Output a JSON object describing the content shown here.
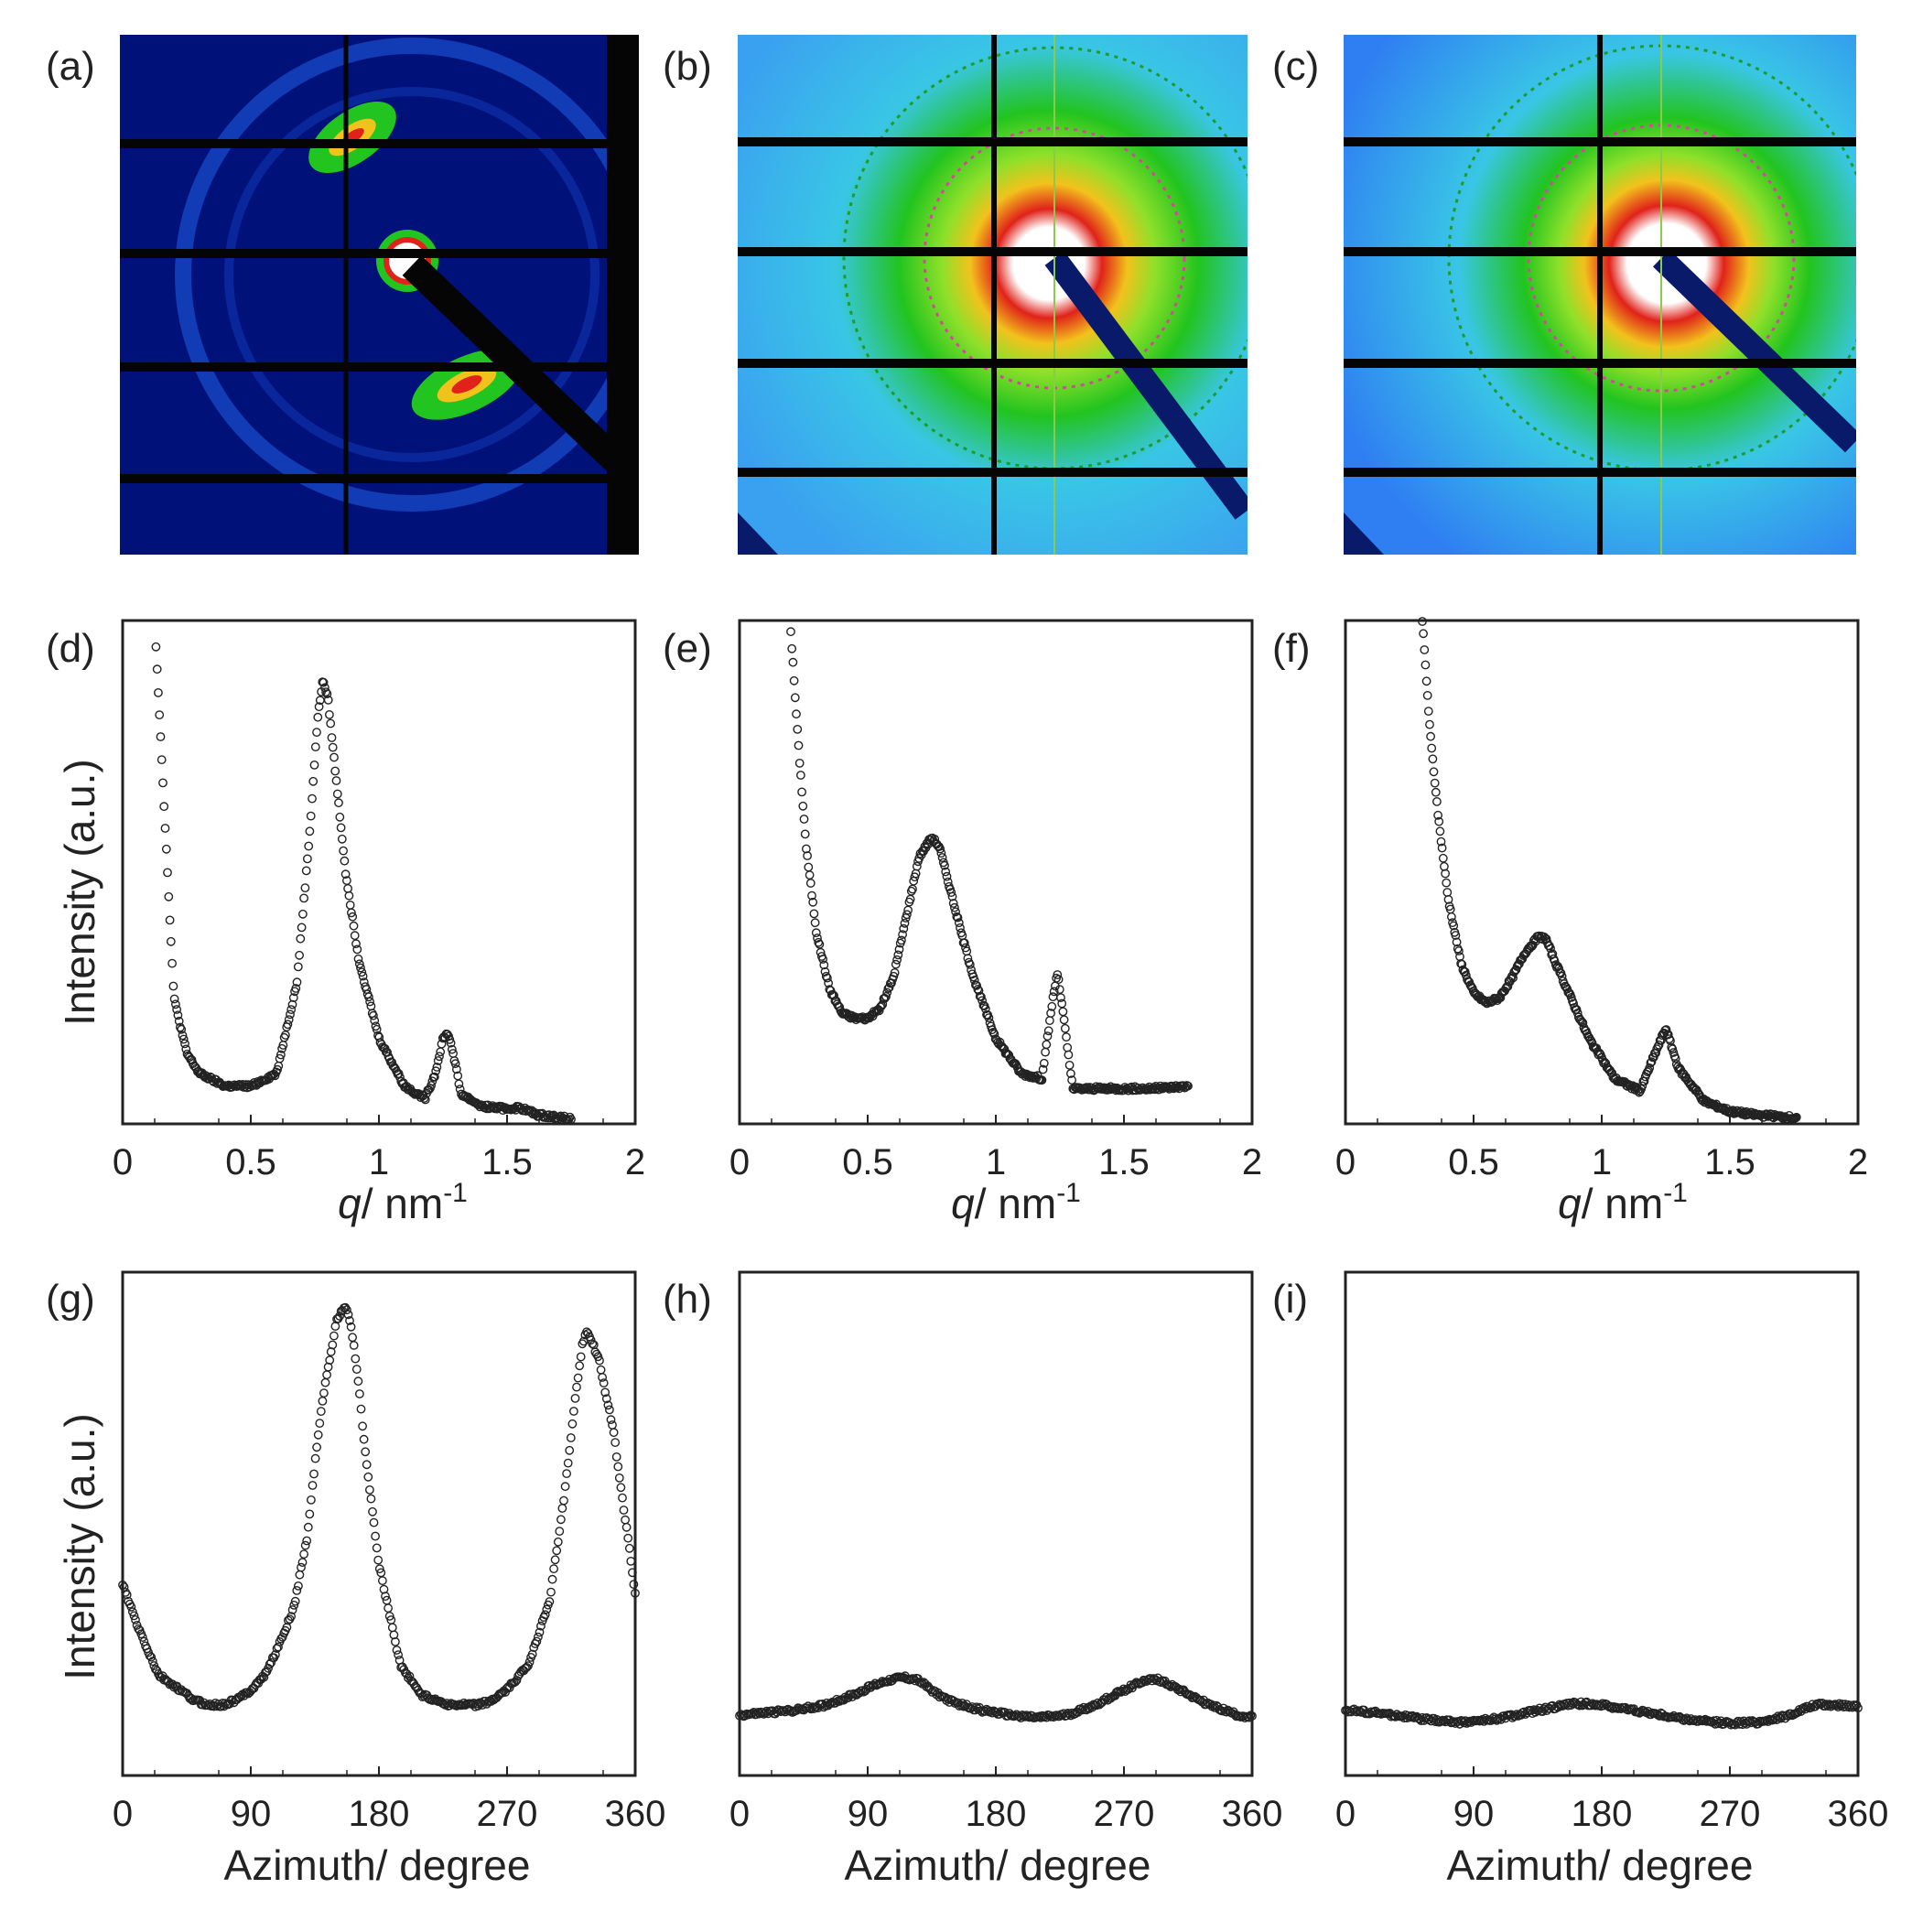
{
  "figure": {
    "labels": [
      "(a)",
      "(b)",
      "(c)",
      "(d)",
      "(e)",
      "(f)",
      "(g)",
      "(h)",
      "(i)"
    ],
    "ylabel": "Intensity (a.u.)",
    "q_xlabel_italic": "q",
    "q_xlabel_rest": "/ nm",
    "q_xlabel_sup": "-1",
    "az_xlabel": "Azimuth/ degree"
  },
  "colors": {
    "detector_bg_a": "#00127a",
    "detector_bg_bc": "#39c6e6",
    "ring_green": "#22c41f",
    "ring_red": "#e0221a",
    "beamstop": "#0a1a6b",
    "marker": "#222222"
  },
  "chart_data": [
    {
      "id": "d",
      "type": "scatter",
      "title": "",
      "xlabel": "q/ nm-1",
      "ylabel": "Intensity (a.u.)",
      "xlim": [
        0,
        2
      ],
      "ylim": [
        0,
        100
      ],
      "xticks": [
        "0",
        "0.5",
        "1",
        "1.5",
        "2"
      ],
      "x": [
        0.13,
        0.16,
        0.2,
        0.25,
        0.3,
        0.4,
        0.5,
        0.6,
        0.68,
        0.73,
        0.76,
        0.78,
        0.8,
        0.83,
        0.87,
        0.92,
        1.0,
        1.1,
        1.18,
        1.22,
        1.25,
        1.27,
        1.29,
        1.32,
        1.4,
        1.5,
        1.55,
        1.62,
        1.75
      ],
      "y": [
        95,
        65,
        25,
        14,
        10,
        7.5,
        7.5,
        10,
        28,
        58,
        80,
        88,
        85,
        70,
        50,
        33,
        17,
        7.5,
        5,
        10,
        17,
        18,
        14,
        6,
        3.5,
        3,
        3.2,
        1.8,
        1
      ]
    },
    {
      "id": "e",
      "type": "scatter",
      "title": "",
      "xlabel": "q/ nm-1",
      "ylabel": "Intensity (a.u.)",
      "xlim": [
        0,
        2
      ],
      "ylim": [
        0,
        100
      ],
      "xticks": [
        "0",
        "0.5",
        "1",
        "1.5",
        "2"
      ],
      "x": [
        0.2,
        0.23,
        0.26,
        0.3,
        0.35,
        0.4,
        0.45,
        0.5,
        0.55,
        0.6,
        0.65,
        0.7,
        0.75,
        0.78,
        0.82,
        0.87,
        0.92,
        1.0,
        1.1,
        1.18,
        1.22,
        1.24,
        1.26,
        1.3,
        1.4,
        1.5,
        1.6,
        1.75
      ],
      "y": [
        98,
        75,
        55,
        38,
        27,
        22,
        21,
        21,
        23,
        29,
        41,
        53,
        57,
        55,
        47,
        37,
        28,
        17,
        10,
        9,
        24,
        30,
        23,
        7,
        7,
        7,
        7,
        7.5
      ]
    },
    {
      "id": "f",
      "type": "scatter",
      "title": "",
      "xlabel": "q/ nm-1",
      "ylabel": "Intensity (a.u.)",
      "xlim": [
        0,
        2
      ],
      "ylim": [
        0,
        100
      ],
      "xticks": [
        "0",
        "0.5",
        "1",
        "1.5",
        "2"
      ],
      "x": [
        0.3,
        0.33,
        0.36,
        0.4,
        0.45,
        0.5,
        0.55,
        0.6,
        0.65,
        0.7,
        0.75,
        0.78,
        0.82,
        0.88,
        0.95,
        1.05,
        1.15,
        1.2,
        1.25,
        1.3,
        1.4,
        1.5,
        1.6,
        1.76
      ],
      "y": [
        100,
        78,
        62,
        45,
        32,
        26,
        24,
        25,
        29,
        34,
        37,
        37,
        32,
        25,
        17,
        9,
        6.5,
        13,
        19,
        11,
        4.5,
        2.5,
        1.8,
        1.2
      ]
    },
    {
      "id": "g",
      "type": "scatter",
      "title": "",
      "xlabel": "Azimuth/ degree",
      "ylabel": "Intensity (a.u.)",
      "xlim": [
        0,
        360
      ],
      "ylim": [
        0,
        100
      ],
      "xticks": [
        "0",
        "90",
        "180",
        "270",
        "360"
      ],
      "x": [
        0,
        10,
        25,
        40,
        50,
        60,
        70,
        80,
        90,
        100,
        110,
        120,
        130,
        135,
        140,
        145,
        150,
        153,
        157,
        160,
        165,
        170,
        180,
        195,
        210,
        220,
        230,
        240,
        250,
        260,
        270,
        285,
        300,
        310,
        318,
        323,
        326,
        330,
        335,
        340,
        345,
        350,
        355,
        360
      ],
      "y": [
        38,
        30,
        20,
        17,
        15,
        14,
        14,
        15,
        17,
        20,
        26,
        33,
        48,
        62,
        74,
        82,
        90,
        92,
        93,
        90,
        80,
        65,
        42,
        22,
        16,
        15,
        14,
        14,
        14,
        15,
        17,
        22,
        35,
        55,
        75,
        86,
        88,
        86,
        82,
        75,
        68,
        57,
        47,
        36
      ]
    },
    {
      "id": "h",
      "type": "scatter",
      "title": "",
      "xlabel": "Azimuth/ degree",
      "ylabel": "Intensity (a.u.)",
      "xlim": [
        0,
        360
      ],
      "ylim": [
        0,
        100
      ],
      "xticks": [
        "0",
        "90",
        "180",
        "270",
        "360"
      ],
      "x": [
        0,
        20,
        40,
        60,
        80,
        95,
        105,
        115,
        125,
        130,
        140,
        150,
        170,
        190,
        210,
        230,
        250,
        270,
        285,
        295,
        310,
        330,
        350,
        360
      ],
      "y": [
        12,
        12.5,
        13,
        14,
        16,
        18,
        19,
        19.5,
        19,
        18,
        16,
        14.5,
        13,
        12,
        11.5,
        12,
        14,
        17,
        19,
        19,
        17,
        14,
        12,
        11.5
      ]
    },
    {
      "id": "i",
      "type": "scatter",
      "title": "",
      "xlabel": "Azimuth/ degree",
      "ylabel": "Intensity (a.u.)",
      "xlim": [
        0,
        360
      ],
      "ylim": [
        0,
        100
      ],
      "xticks": [
        "0",
        "90",
        "180",
        "270",
        "360"
      ],
      "x": [
        0,
        20,
        40,
        60,
        80,
        100,
        120,
        130,
        140,
        150,
        160,
        170,
        180,
        195,
        210,
        230,
        250,
        270,
        290,
        310,
        320,
        330,
        345,
        360
      ],
      "y": [
        13,
        12.5,
        11.8,
        11,
        10.6,
        11,
        12,
        12.6,
        13.2,
        13.8,
        14.2,
        14.3,
        14,
        13.3,
        12.6,
        11.6,
        10.8,
        10.4,
        10.6,
        11.8,
        13,
        14,
        14,
        13.8
      ]
    }
  ]
}
